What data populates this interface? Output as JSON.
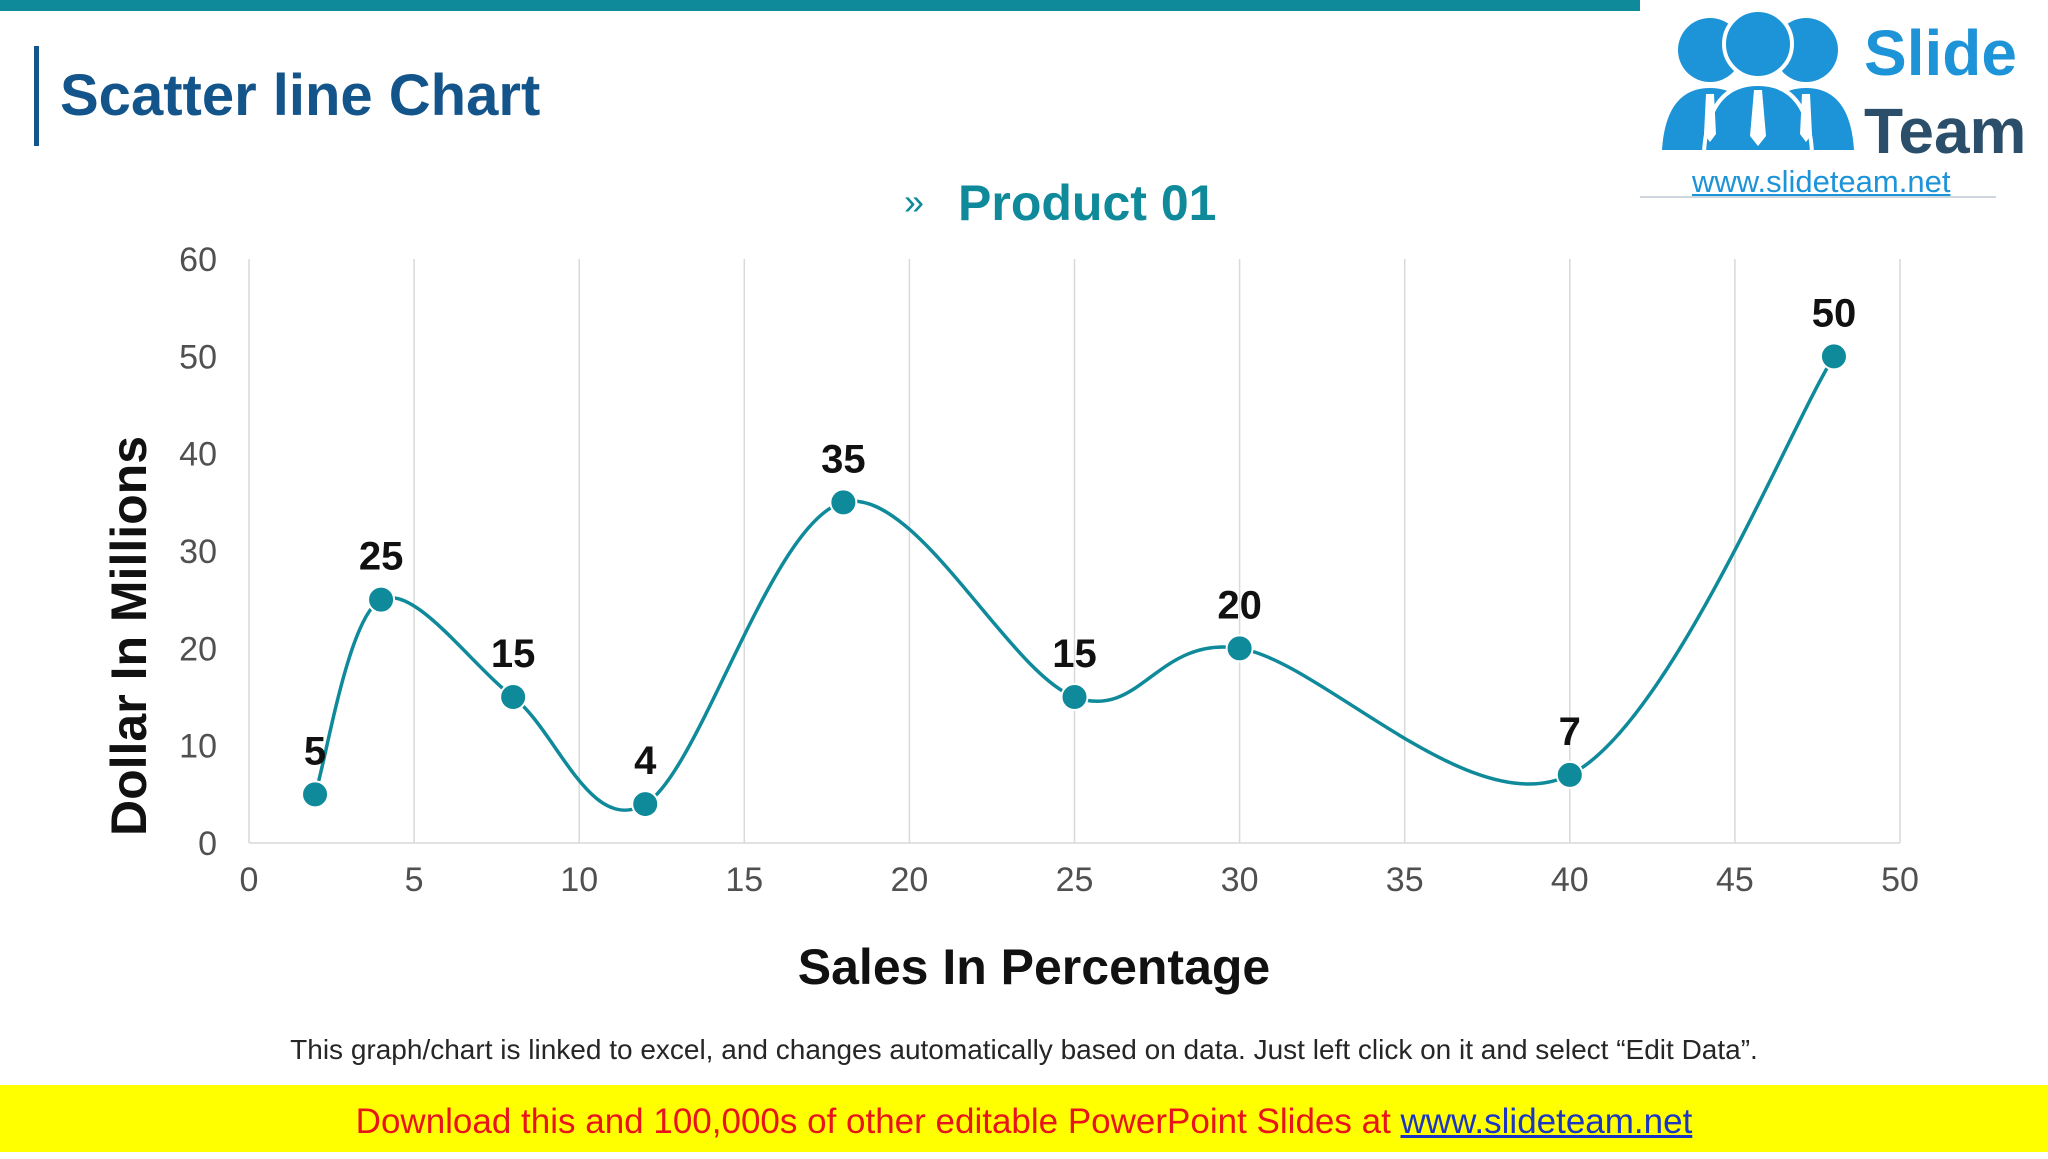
{
  "slide": {
    "title": "Scatter line Chart",
    "footnote": "This graph/chart is linked to excel, and changes automatically based on data. Just left click on it and select “Edit Data”.",
    "banner_text": "Download this and 100,000s of other editable PowerPoint Slides at ",
    "banner_link": "www.slideteam.net"
  },
  "logo": {
    "word1": "Slide",
    "word2": "Team",
    "url": "www.slideteam.net"
  },
  "legend": {
    "marker": "»",
    "label": "Product 01"
  },
  "colors": {
    "accent": "#0e8a9a",
    "title": "#13548a",
    "banner_bg": "#ffff00",
    "banner_text": "#e8141b",
    "banner_link": "#1a36c2"
  },
  "chart_data": {
    "type": "scatter",
    "smooth_lines": true,
    "title": "",
    "xlabel": "Sales In Percentage",
    "ylabel": "Dollar In Millions",
    "xlim": [
      0,
      50
    ],
    "ylim": [
      0,
      60
    ],
    "xticks": [
      0,
      5,
      10,
      15,
      20,
      25,
      30,
      35,
      40,
      45,
      50
    ],
    "yticks": [
      0,
      10,
      20,
      30,
      40,
      50,
      60
    ],
    "grid": "vertical",
    "legend_position": "top-center",
    "series": [
      {
        "name": "Product 01",
        "color": "#0e8a9a",
        "x": [
          2,
          4,
          8,
          12,
          18,
          25,
          30,
          40,
          48
        ],
        "y": [
          5,
          25,
          15,
          4,
          35,
          15,
          20,
          7,
          50
        ],
        "labels": [
          "5",
          "25",
          "15",
          "4",
          "35",
          "15",
          "20",
          "7",
          "50"
        ]
      }
    ]
  }
}
